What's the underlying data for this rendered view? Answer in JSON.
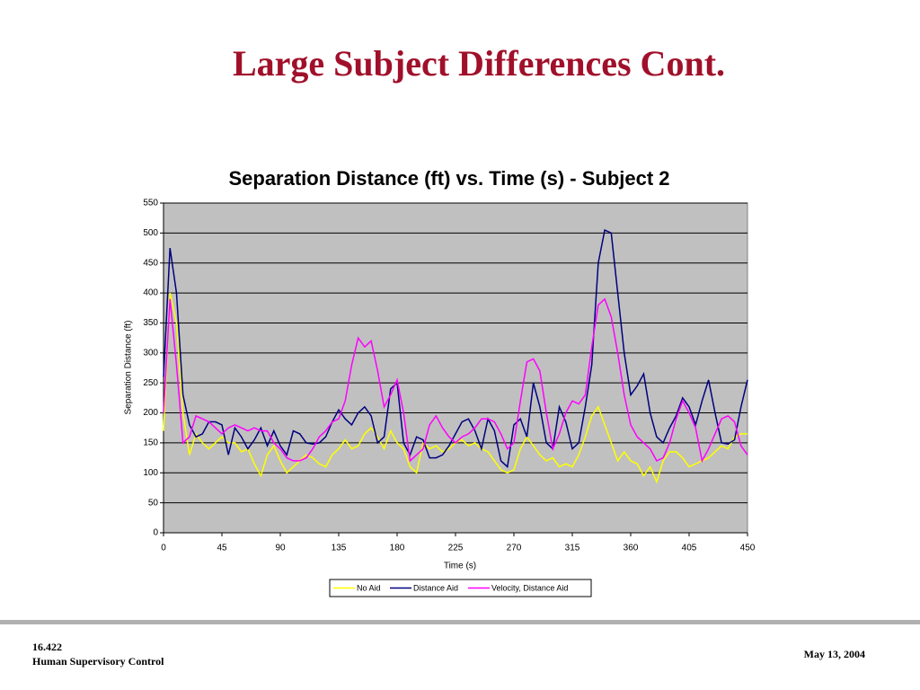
{
  "slide": {
    "title": "Large Subject Differences Cont.",
    "footer_left": [
      "16.422",
      "Human Supervisory Control"
    ],
    "footer_right": "May 13, 2004"
  },
  "chart_data": {
    "type": "line",
    "title": "Separation Distance (ft) vs. Time (s) - Subject 2",
    "xlabel": "Time (s)",
    "ylabel": "Separation Distance (ft)",
    "xlim": [
      0,
      450
    ],
    "xticks": [
      0,
      45,
      90,
      135,
      180,
      225,
      270,
      315,
      360,
      405,
      450
    ],
    "ylim": [
      0,
      550
    ],
    "yticks": [
      0,
      50,
      100,
      150,
      200,
      250,
      300,
      350,
      400,
      450,
      500,
      550
    ],
    "grid": true,
    "legend": "bottom",
    "plot_background": "#c0c0c0",
    "x": [
      0,
      5,
      10,
      15,
      20,
      25,
      30,
      35,
      40,
      45,
      50,
      55,
      60,
      65,
      70,
      75,
      80,
      85,
      90,
      95,
      100,
      105,
      110,
      115,
      120,
      125,
      130,
      135,
      140,
      145,
      150,
      155,
      160,
      165,
      170,
      175,
      180,
      185,
      190,
      195,
      200,
      205,
      210,
      215,
      220,
      225,
      230,
      235,
      240,
      245,
      250,
      255,
      260,
      265,
      270,
      275,
      280,
      285,
      290,
      295,
      300,
      305,
      310,
      315,
      320,
      325,
      330,
      335,
      340,
      345,
      350,
      355,
      360,
      365,
      370,
      375,
      380,
      385,
      390,
      395,
      400,
      405,
      410,
      415,
      420,
      425,
      430,
      435,
      440,
      445,
      450
    ],
    "series": [
      {
        "name": "No Aid",
        "color": "#ffff00",
        "values": [
          170,
          400,
          350,
          200,
          130,
          165,
          150,
          140,
          150,
          160,
          150,
          150,
          135,
          140,
          115,
          95,
          130,
          145,
          120,
          100,
          110,
          120,
          130,
          125,
          115,
          110,
          130,
          140,
          155,
          140,
          145,
          165,
          175,
          160,
          140,
          170,
          150,
          140,
          110,
          100,
          150,
          140,
          145,
          135,
          140,
          150,
          155,
          145,
          150,
          140,
          135,
          120,
          105,
          100,
          105,
          140,
          160,
          145,
          130,
          120,
          125,
          110,
          115,
          110,
          130,
          160,
          195,
          210,
          180,
          150,
          120,
          135,
          120,
          115,
          95,
          110,
          85,
          120,
          135,
          135,
          125,
          110,
          115,
          120,
          125,
          135,
          145,
          140,
          160,
          165,
          165
        ]
      },
      {
        "name": "Distance Aid",
        "color": "#000080",
        "values": [
          260,
          475,
          400,
          230,
          180,
          160,
          165,
          185,
          185,
          180,
          130,
          175,
          160,
          140,
          155,
          175,
          145,
          170,
          145,
          130,
          170,
          165,
          150,
          148,
          150,
          160,
          185,
          205,
          190,
          180,
          200,
          210,
          195,
          150,
          160,
          240,
          250,
          150,
          130,
          160,
          155,
          125,
          125,
          130,
          145,
          165,
          185,
          190,
          170,
          140,
          190,
          170,
          120,
          110,
          180,
          190,
          160,
          250,
          210,
          150,
          140,
          210,
          185,
          140,
          150,
          210,
          280,
          450,
          505,
          500,
          400,
          300,
          230,
          245,
          265,
          200,
          160,
          150,
          175,
          195,
          225,
          210,
          180,
          220,
          255,
          200,
          150,
          148,
          155,
          210,
          255
        ]
      },
      {
        "name": "Velocity, Distance Aid",
        "color": "#ff00ff",
        "values": [
          200,
          390,
          280,
          150,
          160,
          195,
          190,
          185,
          175,
          165,
          175,
          180,
          175,
          170,
          175,
          170,
          170,
          150,
          140,
          125,
          120,
          120,
          125,
          140,
          160,
          170,
          185,
          190,
          220,
          280,
          325,
          310,
          320,
          270,
          210,
          230,
          255,
          200,
          120,
          130,
          140,
          180,
          195,
          175,
          160,
          150,
          160,
          165,
          175,
          190,
          190,
          185,
          165,
          140,
          150,
          220,
          285,
          290,
          270,
          200,
          140,
          165,
          200,
          220,
          215,
          230,
          310,
          380,
          390,
          360,
          300,
          230,
          180,
          160,
          150,
          140,
          120,
          125,
          150,
          190,
          220,
          200,
          175,
          120,
          140,
          165,
          190,
          195,
          185,
          145,
          130
        ]
      }
    ]
  }
}
